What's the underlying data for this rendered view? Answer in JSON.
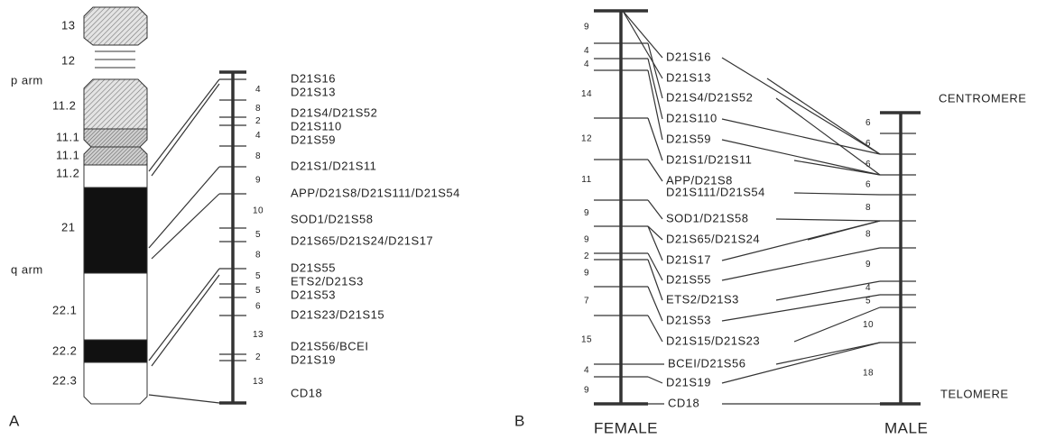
{
  "panel_a": {
    "label": "A",
    "ideogram_labels": [
      "13",
      "12",
      "p arm",
      "11.2",
      "11.1",
      "11.1",
      "11.2",
      "21",
      "q arm",
      "22.1",
      "22.2",
      "22.3"
    ],
    "intervals": [
      4,
      8,
      2,
      4,
      8,
      9,
      10,
      5,
      8,
      5,
      5,
      6,
      13,
      2,
      13
    ],
    "markers": [
      "D21S16",
      "D21S13",
      "D21S4/D21S52",
      "D21S110",
      "D21S59",
      "D21S1/D21S11",
      "APP/D21S8/D21S111/D21S54",
      "SOD1/D21S58",
      "D21S65/D21S24/D21S17",
      "D21S55",
      "ETS2/D21S3",
      "D21S53",
      "D21S23/D21S15",
      "D21S56/BCEI",
      "D21S19",
      "CD18"
    ]
  },
  "panel_b": {
    "label": "B",
    "female_label": "FEMALE",
    "male_label": "MALE",
    "centromere": "CENTROMERE",
    "telomere": "TELOMERE",
    "female_intervals": [
      9,
      4,
      4,
      14,
      12,
      11,
      9,
      9,
      2,
      9,
      7,
      15,
      4,
      9
    ],
    "male_intervals": [
      6,
      6,
      6,
      6,
      8,
      8,
      9,
      4,
      5,
      10,
      18
    ],
    "markers": [
      "D21S16",
      "D21S13",
      "D21S4/D21S52",
      "D21S110",
      "D21S59",
      "D21S1/D21S11",
      "APP/D21S8",
      "D21S111/D21S54",
      "SOD1/D21S58",
      "D21S65/D21S24",
      "D21S17",
      "D21S55",
      "ETS2/D21S3",
      "D21S53",
      "D21S15/D21S23",
      "BCEI/D21S56",
      "D21S19",
      "CD18"
    ]
  }
}
